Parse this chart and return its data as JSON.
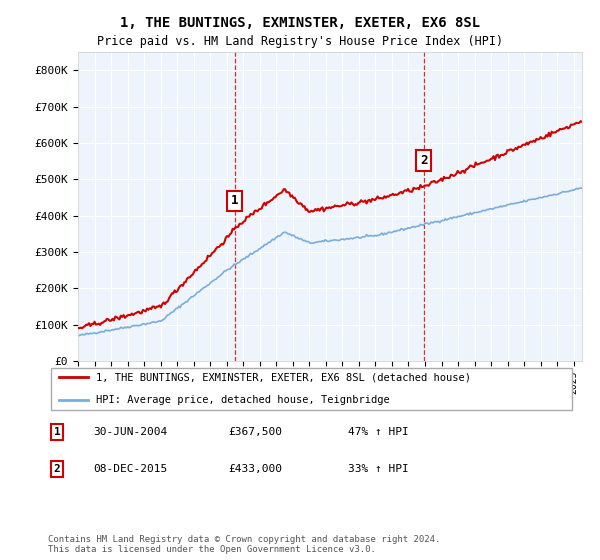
{
  "title": "1, THE BUNTINGS, EXMINSTER, EXETER, EX6 8SL",
  "subtitle": "Price paid vs. HM Land Registry's House Price Index (HPI)",
  "legend_line1": "1, THE BUNTINGS, EXMINSTER, EXETER, EX6 8SL (detached house)",
  "legend_line2": "HPI: Average price, detached house, Teignbridge",
  "transaction1_label": "1",
  "transaction1_date": "30-JUN-2004",
  "transaction1_price": "£367,500",
  "transaction1_hpi": "47% ↑ HPI",
  "transaction2_label": "2",
  "transaction2_date": "08-DEC-2015",
  "transaction2_price": "£433,000",
  "transaction2_hpi": "33% ↑ HPI",
  "footer1": "Contains HM Land Registry data © Crown copyright and database right 2024.",
  "footer2": "This data is licensed under the Open Government Licence v3.0.",
  "red_color": "#cc0000",
  "blue_color": "#7aaddb",
  "ylim_min": 0,
  "ylim_max": 850000,
  "yticks": [
    0,
    100000,
    200000,
    300000,
    400000,
    500000,
    600000,
    700000,
    800000
  ],
  "ytick_labels": [
    "£0",
    "£100K",
    "£200K",
    "£300K",
    "£400K",
    "£500K",
    "£600K",
    "£700K",
    "£800K"
  ],
  "transaction1_x": 2004.5,
  "transaction2_x": 2015.92,
  "transaction1_price_val": 367500,
  "transaction2_price_val": 433000,
  "xlim_min": 1995,
  "xlim_max": 2025.5
}
